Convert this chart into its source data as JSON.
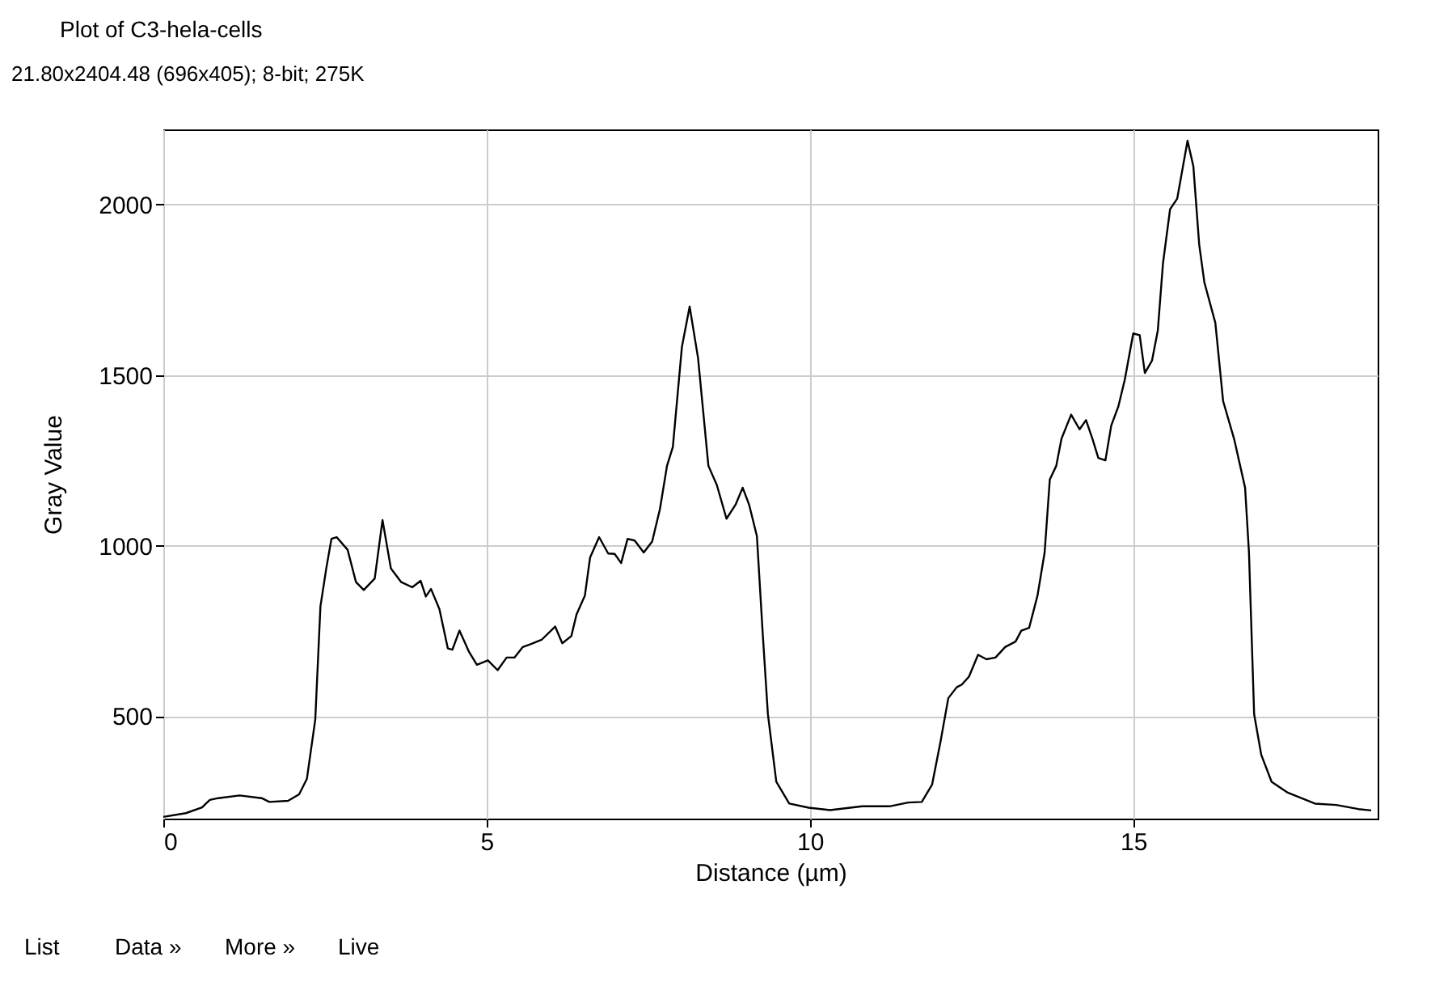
{
  "chart_data": {
    "type": "line",
    "title": "Plot of C3-hela-cells",
    "xlabel": "Distance (µm)",
    "ylabel": "Gray Value",
    "annotations": [
      "21.80x2404.48   (696x405); 8-bit; 275K",
      "List",
      "Data »",
      "More »",
      "Live"
    ],
    "x": [
      0,
      0.35,
      0.6,
      0.72,
      0.85,
      1.18,
      1.52,
      1.64,
      1.93,
      2.1,
      2.22,
      2.35,
      2.43,
      2.52,
      2.6,
      2.68,
      2.85,
      2.98,
      3.1,
      3.27,
      3.39,
      3.52,
      3.68,
      3.85,
      3.98,
      4.06,
      4.14,
      4.27,
      4.4,
      4.47,
      4.58,
      4.73,
      4.85,
      5.02,
      5.17,
      5.31,
      5.43,
      5.56,
      5.68,
      5.85,
      6.06,
      6.17,
      6.31,
      6.39,
      6.52,
      6.6,
      6.74,
      6.88,
      6.98,
      7.08,
      7.18,
      7.29,
      7.43,
      7.56,
      7.68,
      7.79,
      7.88,
      8.02,
      8.14,
      8.27,
      8.43,
      8.56,
      8.71,
      8.85,
      8.96,
      9.06,
      9.18,
      9.27,
      9.35,
      9.48,
      9.68,
      9.98,
      10.31,
      10.81,
      11.23,
      11.52,
      11.73,
      11.89,
      12.02,
      12.14,
      12.27,
      12.35,
      12.46,
      12.6,
      12.73,
      12.87,
      13.02,
      13.18,
      13.27,
      13.39,
      13.52,
      13.63,
      13.71,
      13.81,
      13.89,
      14.04,
      14.17,
      14.27,
      14.37,
      14.46,
      14.57,
      14.66,
      14.77,
      14.87,
      15.0,
      15.1,
      15.18,
      15.29,
      15.38,
      15.46,
      15.57,
      15.68,
      15.84,
      15.93,
      16.02,
      16.1,
      16.27,
      16.39,
      16.56,
      16.73,
      16.79,
      16.87,
      16.98,
      17.14,
      17.39,
      17.81,
      18.14,
      18.48,
      18.68
    ],
    "series": [
      {
        "color": "#000000",
        "values": [
          205,
          216,
          233,
          255,
          260,
          268,
          260,
          249,
          252,
          271,
          316,
          490,
          822,
          933,
          1020,
          1025,
          988,
          893,
          870,
          904,
          1075,
          933,
          893,
          878,
          897,
          851,
          873,
          814,
          699,
          695,
          751,
          688,
          651,
          664,
          635,
          672,
          672,
          703,
          711,
          724,
          763,
          714,
          735,
          798,
          854,
          965,
          1025,
          977,
          976,
          949,
          1020,
          1015,
          980,
          1012,
          1107,
          1234,
          1289,
          1582,
          1701,
          1550,
          1234,
          1178,
          1079,
          1120,
          1170,
          1120,
          1028,
          743,
          506,
          308,
          244,
          232,
          225,
          236,
          236,
          247,
          249,
          300,
          426,
          553,
          585,
          593,
          616,
          680,
          667,
          672,
          703,
          719,
          751,
          759,
          854,
          980,
          1194,
          1234,
          1313,
          1384,
          1341,
          1368,
          1313,
          1257,
          1250,
          1352,
          1408,
          1487,
          1622,
          1617,
          1506,
          1542,
          1630,
          1827,
          1986,
          2017,
          2187,
          2112,
          1883,
          1772,
          1653,
          1424,
          1313,
          1170,
          980,
          506,
          387,
          308,
          276,
          244,
          240,
          228,
          224
        ]
      }
    ],
    "xlim": [
      0,
      18.78
    ],
    "xticks": [
      0,
      5,
      10,
      15
    ],
    "ylim": [
      200,
      2220
    ],
    "yticks": [
      500,
      1000,
      1500,
      2000
    ],
    "grid": true,
    "marker": "none",
    "line_style": "solid"
  }
}
